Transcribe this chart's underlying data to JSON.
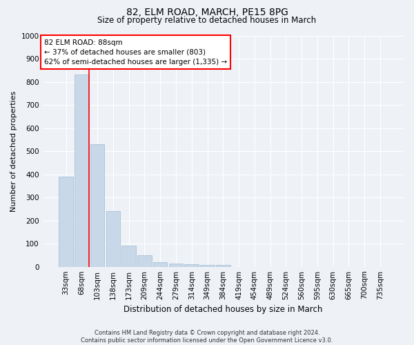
{
  "title1": "82, ELM ROAD, MARCH, PE15 8PG",
  "title2": "Size of property relative to detached houses in March",
  "xlabel": "Distribution of detached houses by size in March",
  "ylabel": "Number of detached properties",
  "bar_color": "#c8d8e8",
  "bar_edge_color": "#a0b8d0",
  "categories": [
    "33sqm",
    "68sqm",
    "103sqm",
    "138sqm",
    "173sqm",
    "209sqm",
    "244sqm",
    "279sqm",
    "314sqm",
    "349sqm",
    "384sqm",
    "419sqm",
    "454sqm",
    "489sqm",
    "524sqm",
    "560sqm",
    "595sqm",
    "630sqm",
    "665sqm",
    "700sqm",
    "735sqm"
  ],
  "values": [
    390,
    830,
    530,
    240,
    93,
    50,
    20,
    15,
    12,
    8,
    7,
    0,
    0,
    0,
    0,
    0,
    0,
    0,
    0,
    0,
    0
  ],
  "ylim": [
    0,
    1000
  ],
  "yticks": [
    0,
    100,
    200,
    300,
    400,
    500,
    600,
    700,
    800,
    900,
    1000
  ],
  "annotation_text": "82 ELM ROAD: 88sqm\n← 37% of detached houses are smaller (803)\n62% of semi-detached houses are larger (1,335) →",
  "vline_x_idx": 1,
  "footer_text": "Contains HM Land Registry data © Crown copyright and database right 2024.\nContains public sector information licensed under the Open Government Licence v3.0.",
  "background_color": "#eef2f7",
  "grid_color": "#ffffff",
  "title1_fontsize": 10,
  "title2_fontsize": 8.5,
  "xlabel_fontsize": 8.5,
  "ylabel_fontsize": 8,
  "tick_fontsize": 7.5,
  "annot_fontsize": 7.5,
  "footer_fontsize": 6
}
